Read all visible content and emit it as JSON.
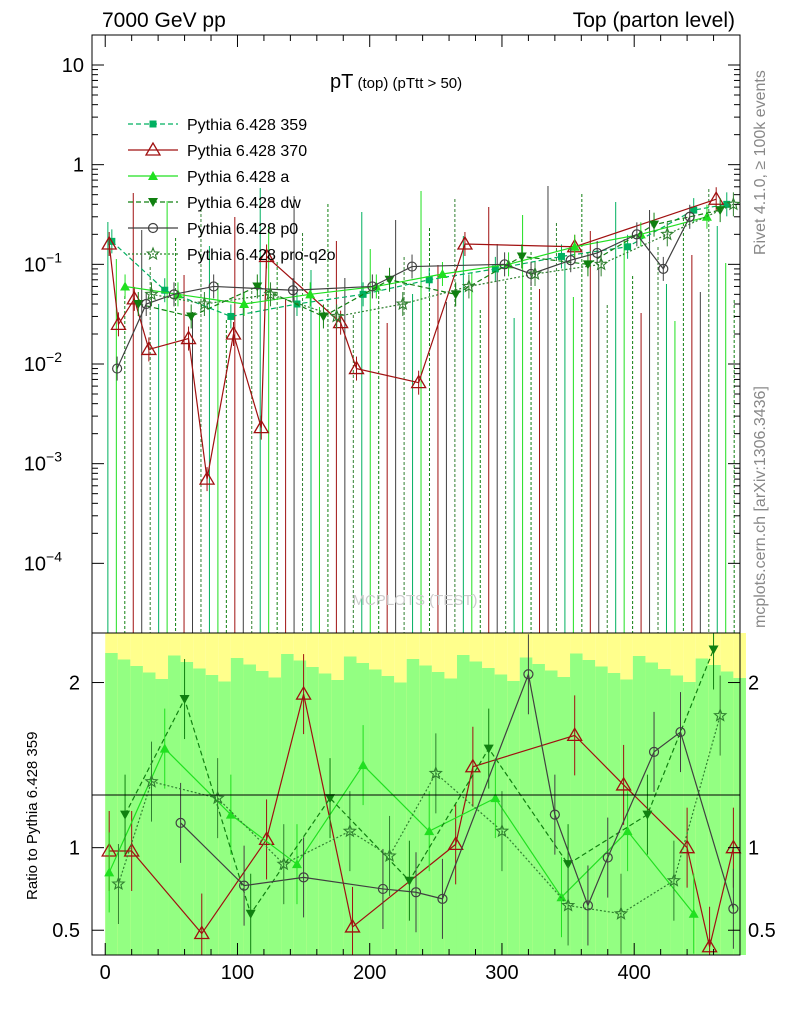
{
  "header": {
    "left": "7000 GeV pp",
    "right": "Top (parton level)"
  },
  "side_text": {
    "top": "Rivet 4.1.0, ≥ 100k events",
    "bottom": "mcplots.cern.ch [arXiv:1306.3436]"
  },
  "watermark": "MCPLOTS (TEST)",
  "colors": {
    "s359": "#00b060",
    "s370": "#a01010",
    "sa": "#20e020",
    "sdw": "#108010",
    "sp0": "#404040",
    "sq2o": "#308030",
    "band_yellow": "#ffff80",
    "band_green": "#80ff80"
  },
  "chart_data": [
    {
      "type": "line",
      "title_main": "pT",
      "title_sub": " (top)  (pTtt > 50)",
      "xlabel": "",
      "ylabel": "",
      "yscale": "log",
      "xlim": [
        -10,
        480
      ],
      "ylim": [
        2e-05,
        20
      ],
      "y_ticks": [
        {
          "value": 10,
          "label": "10"
        },
        {
          "value": 1,
          "label": "1"
        },
        {
          "value": 0.1,
          "label": "10",
          "exp": "−1"
        },
        {
          "value": 0.01,
          "label": "10",
          "exp": "−2"
        },
        {
          "value": 0.001,
          "label": "10",
          "exp": "−3"
        },
        {
          "value": 0.0001,
          "label": "10",
          "exp": "−4"
        }
      ],
      "legend_position": "top-left",
      "series": [
        {
          "name": "Pythia 6.428 359",
          "key": "s359",
          "marker": "square",
          "dash": "dashed",
          "x": [
            5,
            45,
            95,
            145,
            195,
            245,
            295,
            345,
            395,
            445,
            470
          ],
          "y": [
            0.17,
            0.055,
            0.03,
            0.04,
            0.05,
            0.07,
            0.09,
            0.12,
            0.15,
            0.35,
            0.4
          ]
        },
        {
          "name": "Pythia 6.428 370",
          "key": "s370",
          "marker": "triangle-open",
          "dash": "solid",
          "x": [
            3,
            10,
            22,
            33,
            63,
            77,
            97,
            118,
            122,
            178,
            190,
            237,
            272,
            355,
            462
          ],
          "y": [
            0.16,
            0.025,
            0.045,
            0.014,
            0.018,
            0.0007,
            0.02,
            0.0023,
            0.12,
            0.026,
            0.009,
            0.0065,
            0.16,
            0.15,
            0.45
          ]
        },
        {
          "name": "Pythia 6.428 a",
          "key": "sa",
          "marker": "triangle-up",
          "dash": "solid",
          "x": [
            15,
            55,
            105,
            155,
            205,
            255,
            305,
            355,
            405,
            455
          ],
          "y": [
            0.06,
            0.05,
            0.04,
            0.05,
            0.06,
            0.08,
            0.1,
            0.15,
            0.2,
            0.3
          ]
        },
        {
          "name": "Pythia 6.428 dw",
          "key": "sdw",
          "marker": "triangle-down",
          "dash": "dashed",
          "x": [
            25,
            65,
            115,
            165,
            215,
            265,
            315,
            365,
            415,
            465
          ],
          "y": [
            0.04,
            0.03,
            0.06,
            0.03,
            0.07,
            0.05,
            0.12,
            0.1,
            0.25,
            0.35
          ]
        },
        {
          "name": "Pythia 6.428 p0",
          "key": "sp0",
          "marker": "circle-open",
          "dash": "solid",
          "x": [
            9,
            31,
            52,
            82,
            142,
            202,
            232,
            302,
            322,
            352,
            372,
            402,
            422,
            442
          ],
          "y": [
            0.009,
            0.04,
            0.05,
            0.06,
            0.055,
            0.06,
            0.095,
            0.1,
            0.08,
            0.11,
            0.13,
            0.2,
            0.09,
            0.3
          ]
        },
        {
          "name": "Pythia 6.428 pro-q2o",
          "key": "sq2o",
          "marker": "star-open",
          "dash": "dotted",
          "x": [
            35,
            75,
            125,
            175,
            225,
            275,
            325,
            375,
            425,
            475
          ],
          "y": [
            0.05,
            0.04,
            0.05,
            0.03,
            0.04,
            0.06,
            0.08,
            0.1,
            0.2,
            0.4
          ]
        }
      ]
    },
    {
      "type": "line",
      "ylabel": "Ratio to Pythia 6.428 359",
      "xlim": [
        -10,
        480
      ],
      "ylim": [
        0.35,
        2.3
      ],
      "y_ticks": [
        {
          "value": 0.5,
          "label": "0.5"
        },
        {
          "value": 1,
          "label": "1"
        },
        {
          "value": 2,
          "label": "2"
        }
      ],
      "x_ticks": [
        0,
        100,
        200,
        300,
        400
      ],
      "reference_line": 1,
      "series": [
        {
          "name": "Pythia 6.428 370",
          "key": "s370",
          "x": [
            3,
            20,
            73,
            122,
            150,
            187,
            265,
            278,
            355,
            392,
            440,
            457,
            475
          ],
          "y": [
            0.98,
            0.98,
            0.48,
            1.05,
            1.93,
            0.52,
            1.02,
            1.49,
            1.68,
            1.38,
            1.0,
            0.4,
            1.0
          ]
        },
        {
          "name": "Pythia 6.428 a",
          "key": "sa",
          "x": [
            3,
            45,
            95,
            145,
            195,
            245,
            295,
            345,
            395,
            445
          ],
          "y": [
            0.85,
            1.6,
            1.2,
            0.9,
            1.5,
            1.1,
            1.3,
            0.7,
            1.1,
            0.6
          ]
        },
        {
          "name": "Pythia 6.428 dw",
          "key": "sdw",
          "x": [
            15,
            60,
            110,
            170,
            230,
            290,
            350,
            410,
            460
          ],
          "y": [
            1.2,
            1.9,
            0.6,
            1.3,
            0.8,
            1.6,
            0.9,
            1.2,
            2.2
          ]
        },
        {
          "name": "Pythia 6.428 p0",
          "key": "sp0",
          "x": [
            57,
            105,
            150,
            210,
            235,
            255,
            320,
            340,
            365,
            380,
            415,
            435,
            475
          ],
          "y": [
            1.15,
            0.77,
            0.82,
            0.75,
            0.73,
            0.69,
            2.05,
            1.2,
            0.65,
            0.94,
            1.58,
            1.7,
            0.63
          ]
        },
        {
          "name": "Pythia 6.428 pro-q2o",
          "key": "sq2o",
          "x": [
            10,
            35,
            85,
            135,
            185,
            215,
            250,
            300,
            350,
            390,
            430,
            465
          ],
          "y": [
            0.78,
            1.4,
            1.3,
            0.9,
            1.1,
            0.95,
            1.45,
            1.1,
            0.65,
            0.6,
            0.8,
            1.8
          ]
        }
      ]
    }
  ]
}
